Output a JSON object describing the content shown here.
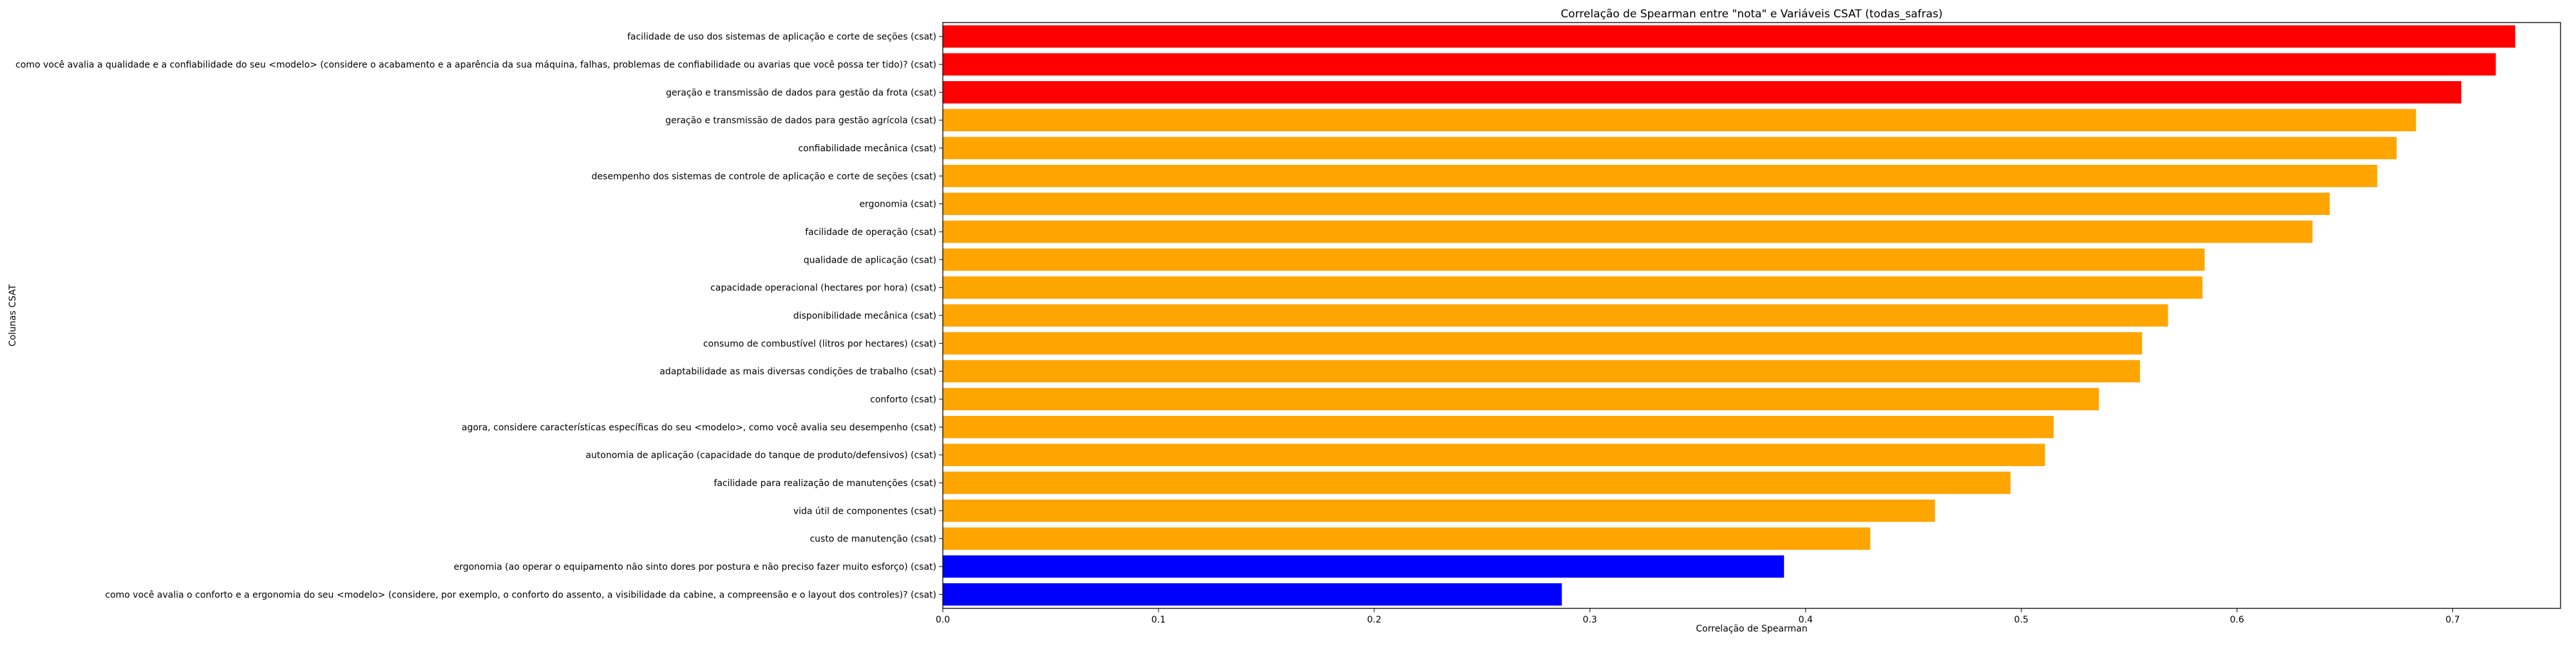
{
  "chart_data": {
    "type": "bar",
    "orientation": "horizontal",
    "title": "Correlação de Spearman entre \"nota\" e Variáveis CSAT (todas_safras)",
    "xlabel": "Correlação de Spearman",
    "ylabel": "Colunas CSAT",
    "xlim": [
      0,
      0.75
    ],
    "xticks": [
      "0.0",
      "0.1",
      "0.2",
      "0.3",
      "0.4",
      "0.5",
      "0.6",
      "0.7"
    ],
    "grid": false,
    "colors": {
      "high": "#ff0000",
      "mid": "#ffa500",
      "low": "#0000ff"
    },
    "categories": [
      "facilidade de uso dos sistemas de aplicação e corte de seções (csat)",
      "como você avalia a qualidade e a confiabilidade do seu <modelo> (considere o acabamento e a aparência da sua máquina, falhas, problemas de confiabilidade ou avarias que você possa ter tido)? (csat)",
      "geração e transmissão de dados para gestão da frota (csat)",
      "geração e transmissão de dados para gestão agrícola (csat)",
      "confiabilidade mecânica (csat)",
      "desempenho dos sistemas de controle de aplicação e corte de seções (csat)",
      "ergonomia (csat)",
      "facilidade de operação (csat)",
      "qualidade de aplicação (csat)",
      "capacidade operacional (hectares por hora) (csat)",
      "disponibilidade mecânica (csat)",
      "consumo de combustível (litros por hectares) (csat)",
      "adaptabilidade as mais diversas condições de trabalho (csat)",
      "conforto (csat)",
      "agora, considere características específicas do seu <modelo>, como você avalia seu desempenho (csat)",
      "autonomia de aplicação (capacidade do tanque de produto/defensivos) (csat)",
      "facilidade para realização de manutenções (csat)",
      "vida útil de componentes (csat)",
      "custo de manutenção (csat)",
      "ergonomia (ao operar o equipamento não sinto dores por postura e não preciso fazer muito esforço) (csat)",
      "como você avalia o conforto e a ergonomia do seu <modelo>  (considere, por exemplo, o conforto do assento, a visibilidade da cabine, a compreensão e o layout dos controles)? (csat)"
    ],
    "values": [
      0.729,
      0.72,
      0.704,
      0.683,
      0.674,
      0.665,
      0.643,
      0.635,
      0.585,
      0.584,
      0.568,
      0.556,
      0.555,
      0.536,
      0.515,
      0.511,
      0.495,
      0.46,
      0.43,
      0.39,
      0.287
    ],
    "bar_colors": [
      "high",
      "high",
      "high",
      "mid",
      "mid",
      "mid",
      "mid",
      "mid",
      "mid",
      "mid",
      "mid",
      "mid",
      "mid",
      "mid",
      "mid",
      "mid",
      "mid",
      "mid",
      "mid",
      "low",
      "low"
    ]
  }
}
